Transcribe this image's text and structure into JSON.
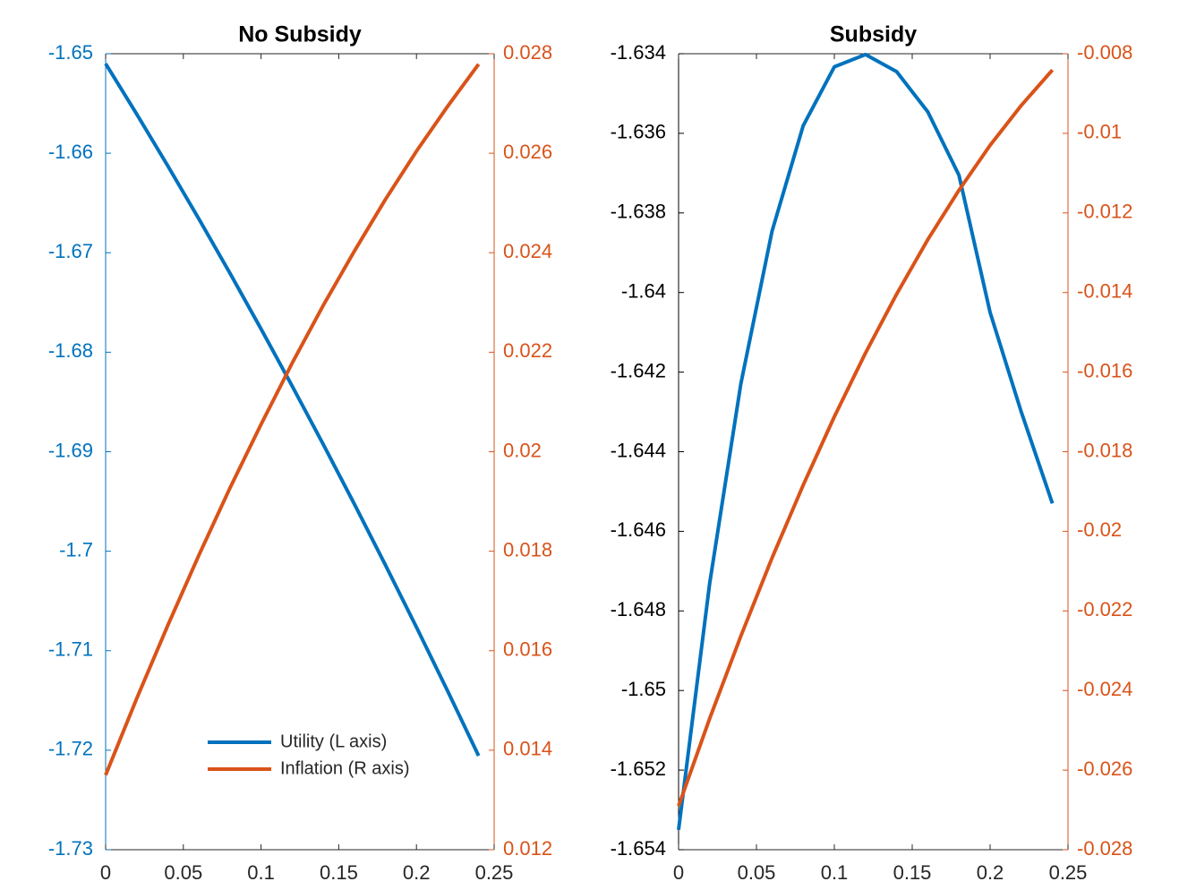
{
  "chart_data": [
    {
      "type": "line",
      "title": "No Subsidy",
      "x": [
        0,
        0.02,
        0.04,
        0.06,
        0.08,
        0.1,
        0.12,
        0.14,
        0.16,
        0.18,
        0.2,
        0.22,
        0.24
      ],
      "series": [
        {
          "name": "Utility (L axis)",
          "color": "#0072bd",
          "axis": "y",
          "values": [
            -1.651,
            -1.65607,
            -1.66127,
            -1.6666,
            -1.67206,
            -1.67766,
            -1.68339,
            -1.68925,
            -1.69525,
            -1.70138,
            -1.70764,
            -1.71403,
            -1.72056
          ]
        },
        {
          "name": "Inflation (R axis)",
          "color": "#d95319",
          "axis": "y2",
          "values": [
            0.0135,
            0.01504,
            0.01651,
            0.01792,
            0.01927,
            0.02055,
            0.02178,
            0.02294,
            0.02403,
            0.02507,
            0.02604,
            0.02694,
            0.02779
          ]
        }
      ],
      "xlim": [
        0,
        0.25
      ],
      "xticks": [
        0,
        0.05,
        0.1,
        0.15,
        0.2,
        0.25
      ],
      "ylim": [
        -1.73,
        -1.65
      ],
      "yticks": [
        -1.73,
        -1.72,
        -1.71,
        -1.7,
        -1.69,
        -1.68,
        -1.67,
        -1.66,
        -1.65
      ],
      "y2lim": [
        0.012,
        0.028
      ],
      "y2ticks": [
        0.012,
        0.014,
        0.016,
        0.018,
        0.02,
        0.022,
        0.024,
        0.026,
        0.028
      ],
      "ycolor": "#0072bd",
      "y2color": "#d95319",
      "legend": "lower center"
    },
    {
      "type": "line",
      "title": "Subsidy",
      "x": [
        0,
        0.02,
        0.04,
        0.06,
        0.08,
        0.1,
        0.12,
        0.14,
        0.16,
        0.18,
        0.2,
        0.22,
        0.24
      ],
      "series": [
        {
          "color": "#0072bd",
          "axis": "y",
          "values": [
            -1.6535,
            -1.6473,
            -1.64229,
            -1.63846,
            -1.63581,
            -1.63433,
            -1.63402,
            -1.63445,
            -1.63546,
            -1.63705,
            -1.6405,
            -1.643,
            -1.6453
          ]
        },
        {
          "color": "#d95319",
          "axis": "y2",
          "values": [
            -0.0269,
            -0.0247,
            -0.02263,
            -0.02067,
            -0.01884,
            -0.01712,
            -0.01552,
            -0.01404,
            -0.01267,
            -0.01143,
            -0.0103,
            -0.0093,
            -0.00841
          ]
        }
      ],
      "xlim": [
        0,
        0.25
      ],
      "xticks": [
        0,
        0.05,
        0.1,
        0.15,
        0.2,
        0.25
      ],
      "ylim": [
        -1.654,
        -1.634
      ],
      "yticks": [
        -1.654,
        -1.652,
        -1.65,
        -1.648,
        -1.646,
        -1.644,
        -1.642,
        -1.64,
        -1.638,
        -1.636,
        -1.634
      ],
      "y2lim": [
        -0.028,
        -0.008
      ],
      "y2ticks": [
        -0.028,
        -0.026,
        -0.024,
        -0.022,
        -0.02,
        -0.018,
        -0.016,
        -0.014,
        -0.012,
        -0.01,
        -0.008
      ],
      "ycolor": "#000000",
      "y2color": "#d95319"
    }
  ]
}
